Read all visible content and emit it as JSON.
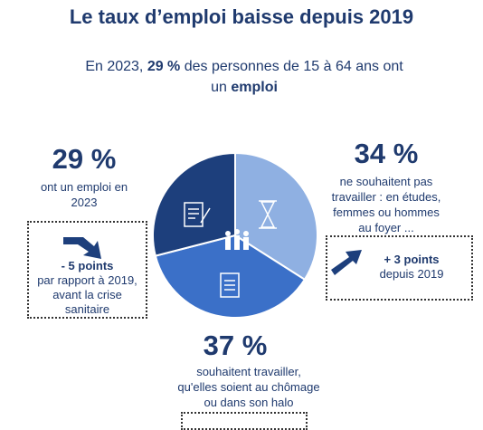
{
  "chart_data": {
    "type": "pie",
    "title": "Le taux d’emploi baisse depuis 2019",
    "subtitle": [
      "En 2023, ",
      "29 %",
      " des personnes de 15 à 64 ans ont un ",
      "emploi"
    ],
    "values": [
      34,
      37,
      29
    ],
    "value_labels": [
      "34 %",
      "37 %",
      "29 %"
    ],
    "categories": [
      "ne souhaitent pas travailler : en études, femmes ou hommes au foyer ...",
      "souhaitent travailler, qu'elles soient au chômage ou dans son halo",
      "ont un emploi en 2023"
    ],
    "colors": [
      "#8fb0e2",
      "#3b70c8",
      "#1d3f7c"
    ],
    "annotations": [
      {
        "bold": "- 5 points",
        "text": "par rapport à 2019, avant la crise sanitaire"
      },
      {
        "bold": "+ 3 points",
        "text": "depuis 2019"
      }
    ]
  }
}
